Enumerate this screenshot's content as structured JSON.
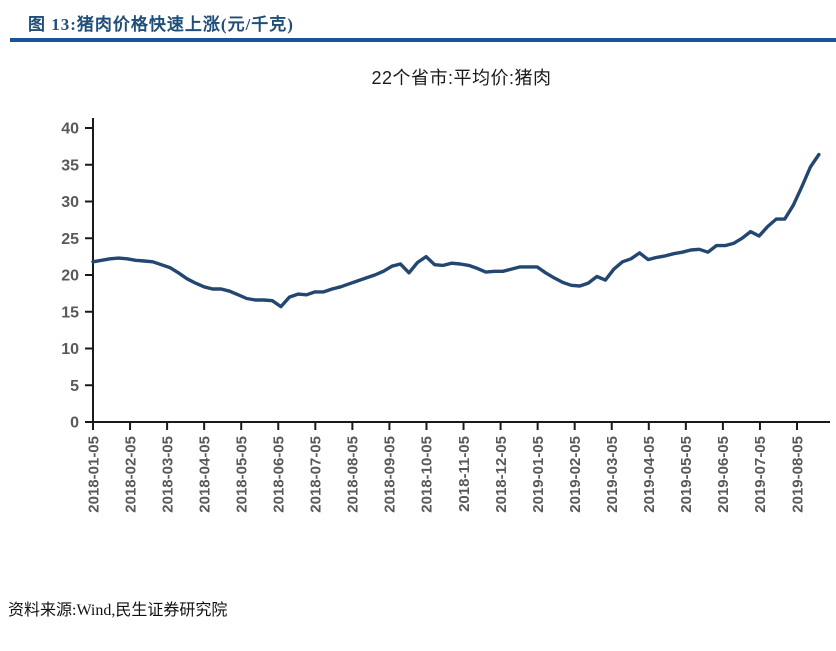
{
  "figure": {
    "caption": "图 13:猪肉价格快速上涨(元/千克)",
    "source": "资料来源:Wind,民生证券研究院",
    "accent_color": "#1F4E79",
    "bar_color": "#1A5296"
  },
  "chart_data": {
    "type": "line",
    "title": "22个省市:平均价:猪肉",
    "xlabel": "",
    "ylabel": "",
    "ylim": [
      0,
      40
    ],
    "y_tick_step": 5,
    "y_tick_labels": [
      "0",
      "5",
      "10",
      "15",
      "20",
      "25",
      "30",
      "35",
      "40"
    ],
    "x_tick_labels": [
      "2018-01-05",
      "2018-02-05",
      "2018-03-05",
      "2018-04-05",
      "2018-05-05",
      "2018-06-05",
      "2018-07-05",
      "2018-08-05",
      "2018-09-05",
      "2018-10-05",
      "2018-11-05",
      "2018-12-05",
      "2019-01-05",
      "2019-02-05",
      "2019-03-05",
      "2019-04-05",
      "2019-05-05",
      "2019-06-05",
      "2019-07-05",
      "2019-08-05"
    ],
    "grid": false,
    "legend": "none",
    "axis_color": "#1a1a1a",
    "tick_label_color": "#595959",
    "series": [
      {
        "name": "22个省市:平均价:猪肉",
        "color": "#234770",
        "x_start": "2018-01-05",
        "x_step_days": 7,
        "values": [
          21.8,
          22.0,
          22.2,
          22.3,
          22.2,
          22.0,
          21.9,
          21.8,
          21.4,
          21.0,
          20.3,
          19.5,
          18.9,
          18.4,
          18.1,
          18.1,
          17.8,
          17.3,
          16.8,
          16.6,
          16.6,
          16.5,
          15.7,
          17.0,
          17.4,
          17.3,
          17.7,
          17.7,
          18.1,
          18.4,
          18.8,
          19.2,
          19.6,
          20.0,
          20.5,
          21.2,
          21.5,
          20.3,
          21.7,
          22.5,
          21.4,
          21.3,
          21.6,
          21.5,
          21.3,
          20.9,
          20.4,
          20.5,
          20.5,
          20.8,
          21.1,
          21.1,
          21.1,
          20.3,
          19.6,
          19.0,
          18.6,
          18.5,
          18.9,
          19.8,
          19.3,
          20.8,
          21.8,
          22.2,
          23.0,
          22.1,
          22.4,
          22.6,
          22.9,
          23.1,
          23.4,
          23.5,
          23.1,
          24.0,
          24.0,
          24.3,
          25.0,
          25.9,
          25.3,
          26.6,
          27.6,
          27.6,
          29.5,
          32.0,
          34.7,
          36.4
        ]
      }
    ]
  }
}
